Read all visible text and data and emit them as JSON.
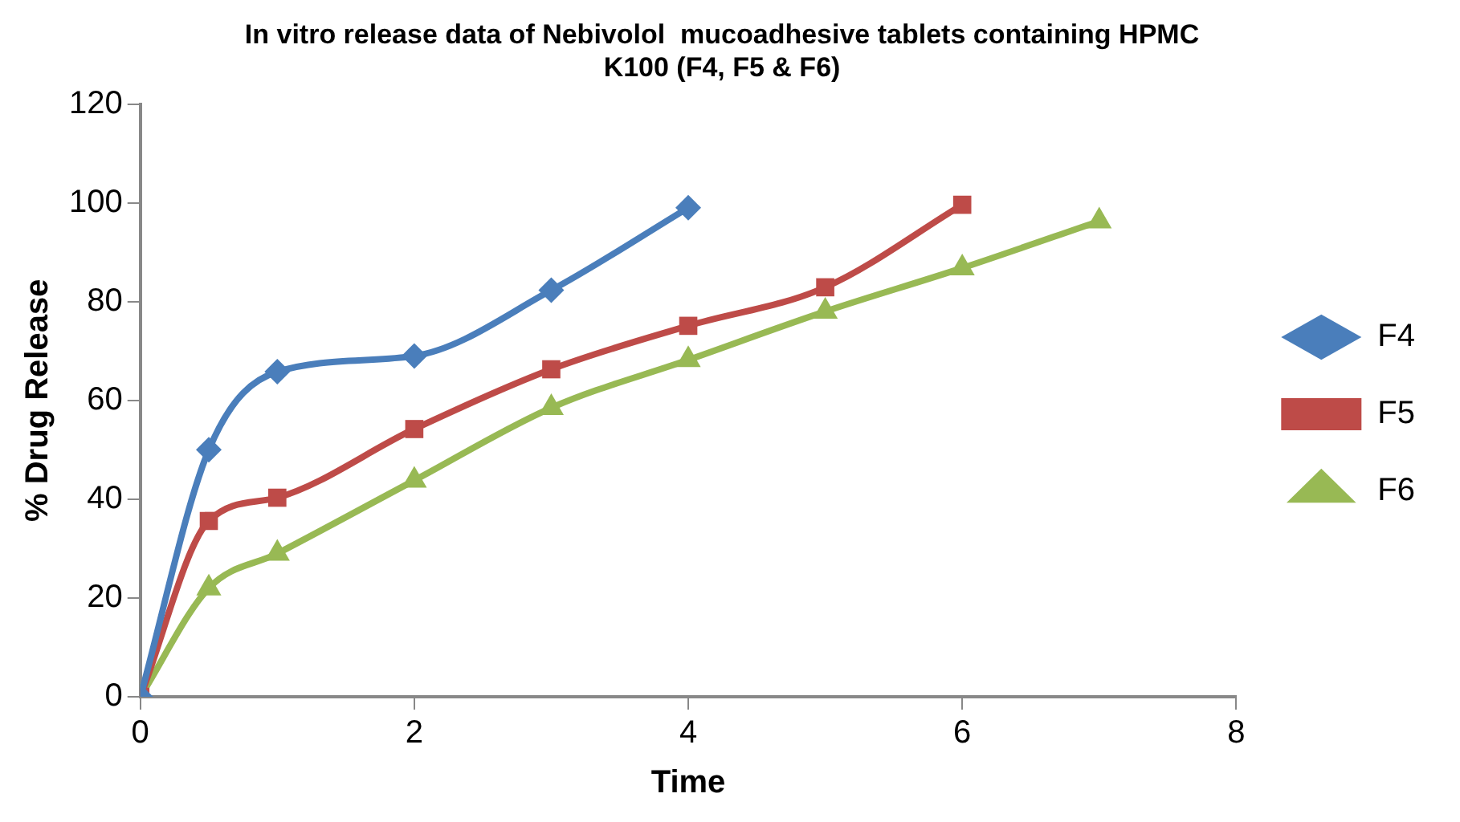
{
  "chart_data": {
    "type": "line",
    "title": "In vitro release data of Nebivolol  mucoadhesive tablets containing HPMC K100 (F4, F5 & F6)",
    "xlabel": "Time",
    "ylabel": "% Drug Release",
    "series": [
      {
        "name": "F4",
        "color": "#4a7ebb",
        "marker": "diamond",
        "x": [
          0,
          0.5,
          1,
          2,
          3,
          4
        ],
        "values": [
          0,
          50,
          65.8,
          69,
          82.3,
          99
        ]
      },
      {
        "name": "F5",
        "color": "#be4b48",
        "marker": "square",
        "x": [
          0,
          0.5,
          1,
          2,
          3,
          4,
          5,
          6
        ],
        "values": [
          0,
          35.6,
          40.3,
          54.2,
          66.3,
          75.1,
          82.9,
          99.6
        ]
      },
      {
        "name": "F6",
        "color": "#98b954",
        "marker": "triangle",
        "x": [
          0,
          0.5,
          1,
          2,
          3,
          4,
          5,
          6,
          7
        ],
        "values": [
          0,
          22,
          29,
          43.8,
          58.5,
          68.2,
          78,
          86.8,
          96.3
        ]
      }
    ],
    "xlim": [
      0,
      8
    ],
    "xticks": [
      0,
      2,
      4,
      6,
      8
    ],
    "ylim": [
      0,
      120
    ],
    "yticks": [
      0,
      20,
      40,
      60,
      80,
      100,
      120
    ],
    "grid": false,
    "legend": "right"
  }
}
